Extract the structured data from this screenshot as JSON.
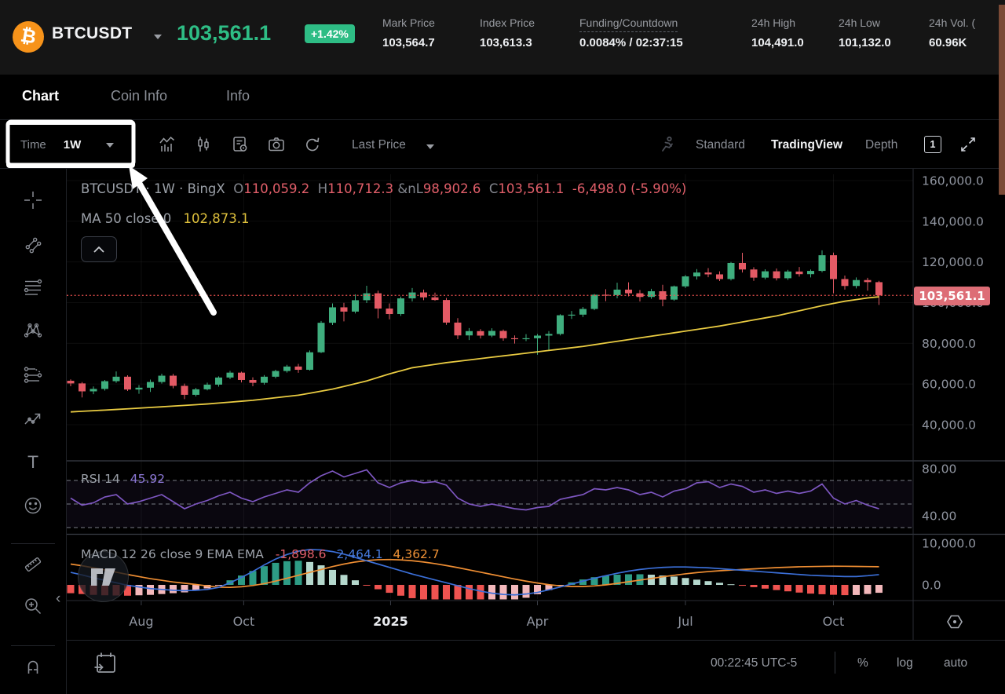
{
  "header": {
    "symbol": "BTCUSDT",
    "price": "103,561.1",
    "change": "+1.42%",
    "stats": [
      {
        "label": "Mark Price",
        "value": "103,564.7"
      },
      {
        "label": "Index Price",
        "value": "103,613.3"
      },
      {
        "label": "Funding/Countdown",
        "value": "0.0084% / 02:37:15"
      },
      {
        "label": "24h High",
        "value": "104,491.0"
      },
      {
        "label": "24h Low",
        "value": "101,132.0"
      },
      {
        "label": "24h Vol. (",
        "value": "60.96K"
      }
    ]
  },
  "tabs": {
    "chart": "Chart",
    "coin_info": "Coin Info",
    "info": "Info"
  },
  "toolbar": {
    "time_label": "Time",
    "interval": "1W",
    "last_price": "Last Price",
    "standard": "Standard",
    "tradingview": "TradingView",
    "depth": "Depth",
    "box_number": "1"
  },
  "legend": {
    "title": "BTCUSDT · 1W · BingX",
    "o_label": "O",
    "o": "110,059.2",
    "h_label": "H",
    "h": "110,712.3",
    "l_label": "L",
    "l": "98,902.6",
    "c_label": "C",
    "c": "103,561.1",
    "change": "-6,498.0 (-5.90%)",
    "ma_label": "MA 50 close 0",
    "ma_value": "102,873.1"
  },
  "rsi_legend": {
    "label": "RSI 14",
    "value": "45.92"
  },
  "macd_legend": {
    "label": "MACD 12 26 close 9 EMA EMA",
    "hist": "-1,898.6",
    "macd": "2,464.1",
    "signal": "4,362.7"
  },
  "price_chip": "103,561.1",
  "footer": {
    "clock": "00:22:45 UTC-5",
    "percent": "%",
    "log": "log",
    "auto": "auto"
  },
  "chart_data": {
    "type": "candlestick",
    "symbol": "BTCUSDT",
    "interval": "1W",
    "exchange": "BingX",
    "current_price": 103561.1,
    "price_axis": {
      "min": 40000,
      "max": 160000,
      "ticks": [
        {
          "label": "160,000.0",
          "value": 160000
        },
        {
          "label": "140,000.0",
          "value": 140000
        },
        {
          "label": "120,000.0",
          "value": 120000
        },
        {
          "label": "100,000.0",
          "value": 100000
        },
        {
          "label": "80,000.0",
          "value": 80000
        },
        {
          "label": "60,000.0",
          "value": 60000
        },
        {
          "label": "40,000.0",
          "value": 40000
        }
      ]
    },
    "rsi_axis": {
      "ticks": [
        {
          "label": "80.00",
          "value": 80
        },
        {
          "label": "40.00",
          "value": 40
        }
      ],
      "levels": [
        70,
        50,
        30
      ]
    },
    "macd_axis": {
      "ticks": [
        {
          "label": "10,000.0",
          "value": 10000
        },
        {
          "label": "0.0",
          "value": 0
        }
      ]
    },
    "time_ticks": [
      {
        "label": "Aug",
        "i": 6.2,
        "bold": false
      },
      {
        "label": "Oct",
        "i": 15.2,
        "bold": false
      },
      {
        "label": "2025",
        "i": 28.1,
        "bold": true
      },
      {
        "label": "Apr",
        "i": 41.0,
        "bold": false
      },
      {
        "label": "Jul",
        "i": 54.0,
        "bold": false
      },
      {
        "label": "Oct",
        "i": 67.0,
        "bold": false
      }
    ],
    "colors": {
      "up": "#3fae7e",
      "down": "#e35a65",
      "ma": "#e9cb42",
      "price_line": "#ef5350",
      "rsi": "#7e57c2",
      "macd_line": "#3b6fd8",
      "signal_line": "#ef8e33",
      "hist_pos": "#2e9c85",
      "hist_pos_light": "#b5d8cd",
      "hist_neg": "#ef5350",
      "hist_neg_light": "#f3b8bb"
    },
    "candles": [
      [
        61600,
        62300,
        58900,
        60300
      ],
      [
        60300,
        61000,
        53400,
        56400
      ],
      [
        56400,
        58800,
        55000,
        57600
      ],
      [
        57600,
        62000,
        56800,
        61400
      ],
      [
        61400,
        66200,
        60600,
        63600
      ],
      [
        63600,
        64300,
        56600,
        57300
      ],
      [
        57300,
        59500,
        55200,
        58200
      ],
      [
        58200,
        62200,
        56100,
        61000
      ],
      [
        61000,
        65100,
        60200,
        64100
      ],
      [
        64100,
        65000,
        57900,
        59100
      ],
      [
        59100,
        60200,
        52600,
        54700
      ],
      [
        54700,
        58100,
        53900,
        57400
      ],
      [
        57400,
        60700,
        56900,
        59700
      ],
      [
        59700,
        63800,
        58700,
        63200
      ],
      [
        63200,
        66500,
        62400,
        65600
      ],
      [
        65600,
        66100,
        60800,
        62000
      ],
      [
        62000,
        63300,
        58900,
        60600
      ],
      [
        60600,
        64400,
        59700,
        63600
      ],
      [
        63600,
        67000,
        62800,
        66400
      ],
      [
        66400,
        69400,
        65600,
        68600
      ],
      [
        68600,
        69900,
        65500,
        67000
      ],
      [
        67000,
        76500,
        66600,
        75600
      ],
      [
        75600,
        91000,
        75200,
        90100
      ],
      [
        90100,
        99600,
        89000,
        97700
      ],
      [
        97700,
        99900,
        90800,
        95600
      ],
      [
        95600,
        104100,
        94700,
        101200
      ],
      [
        101200,
        108300,
        99800,
        104600
      ],
      [
        104600,
        105900,
        92300,
        97100
      ],
      [
        97100,
        99600,
        91800,
        94400
      ],
      [
        94400,
        103000,
        93500,
        102100
      ],
      [
        102100,
        107200,
        100600,
        105000
      ],
      [
        105000,
        106400,
        101200,
        102600
      ],
      [
        102600,
        104900,
        100900,
        101300
      ],
      [
        101300,
        102300,
        89100,
        90200
      ],
      [
        90200,
        92400,
        82100,
        83900
      ],
      [
        83900,
        87500,
        81600,
        86000
      ],
      [
        86000,
        87000,
        82400,
        83800
      ],
      [
        83800,
        87400,
        83000,
        86100
      ],
      [
        86100,
        86800,
        81300,
        82500
      ],
      [
        82500,
        83900,
        79900,
        82300
      ],
      [
        82300,
        84500,
        81100,
        82500
      ],
      [
        82500,
        84600,
        74400,
        83800
      ],
      [
        83800,
        86000,
        76200,
        84600
      ],
      [
        84600,
        94300,
        83900,
        93800
      ],
      [
        93800,
        95900,
        92000,
        94100
      ],
      [
        94100,
        97900,
        92900,
        96900
      ],
      [
        96900,
        104300,
        96300,
        103900
      ],
      [
        103900,
        106600,
        100700,
        103700
      ],
      [
        103700,
        109800,
        102100,
        106400
      ],
      [
        106400,
        110000,
        103100,
        104600
      ],
      [
        104600,
        106200,
        100600,
        102800
      ],
      [
        102800,
        106800,
        101900,
        105600
      ],
      [
        105600,
        108800,
        98200,
        101500
      ],
      [
        101500,
        108400,
        100900,
        108000
      ],
      [
        108000,
        113600,
        107200,
        112900
      ],
      [
        112900,
        116500,
        111400,
        114800
      ],
      [
        114800,
        117000,
        112500,
        113900
      ],
      [
        113900,
        115400,
        110600,
        111600
      ],
      [
        111600,
        120000,
        110900,
        119500
      ],
      [
        119500,
        124500,
        114800,
        116300
      ],
      [
        116300,
        117400,
        110700,
        112300
      ],
      [
        112300,
        116400,
        111500,
        115400
      ],
      [
        115400,
        116800,
        110900,
        112000
      ],
      [
        112000,
        116100,
        111200,
        115300
      ],
      [
        115300,
        117500,
        112800,
        114000
      ],
      [
        114000,
        116300,
        112400,
        115600
      ],
      [
        115600,
        125700,
        114900,
        123300
      ],
      [
        123300,
        124600,
        104600,
        111600
      ],
      [
        111600,
        113300,
        106400,
        108200
      ],
      [
        108200,
        112400,
        107000,
        111100
      ],
      [
        111100,
        112200,
        105900,
        110100
      ],
      [
        110059.2,
        110712.3,
        98902.6,
        103561.1
      ]
    ],
    "ma50": [
      46300,
      46600,
      46900,
      47200,
      47500,
      47825,
      48150,
      48475,
      48800,
      49150,
      49500,
      49850,
      50200,
      50650,
      51100,
      51550,
      52000,
      52625,
      53250,
      53875,
      54500,
      55500,
      56500,
      57500,
      58833,
      60167,
      61500,
      63250,
      65000,
      66500,
      68000,
      68833,
      69667,
      70500,
      71167,
      71833,
      72500,
      73167,
      73833,
      74500,
      75167,
      75833,
      76500,
      77167,
      77833,
      78500,
      79333,
      80167,
      81000,
      81833,
      82667,
      83500,
      84333,
      85167,
      86000,
      86833,
      87667,
      88500,
      89500,
      90500,
      91500,
      92500,
      93500,
      94750,
      96000,
      97250,
      98500,
      99600,
      100700,
      101500,
      102300,
      102873
    ],
    "rsi": [
      55,
      49,
      51,
      56,
      58,
      50,
      52,
      55,
      58,
      52,
      46,
      50,
      53,
      57,
      60,
      55,
      52,
      56,
      59,
      62,
      60,
      68,
      74,
      78,
      73,
      76,
      79,
      68,
      64,
      68,
      70,
      68,
      69,
      66,
      55,
      50,
      48,
      50,
      48,
      46,
      45,
      47,
      48,
      54,
      56,
      58,
      63,
      62,
      64,
      62,
      58,
      60,
      56,
      61,
      63,
      68,
      69,
      64,
      67,
      65,
      60,
      62,
      59,
      61,
      59,
      61,
      67,
      55,
      50,
      53,
      49,
      45.92
    ],
    "rsi_current": 45.92,
    "macd": {
      "macd_line": [
        3000,
        2400,
        1700,
        1100,
        500,
        -100,
        -500,
        -900,
        -1100,
        -1300,
        -1400,
        -1300,
        -1100,
        -600,
        500,
        1800,
        3200,
        4800,
        6200,
        7300,
        8100,
        8500,
        8400,
        8000,
        7400,
        6600,
        5800,
        5000,
        4200,
        3400,
        2600,
        1900,
        1200,
        500,
        -200,
        -900,
        -1500,
        -2000,
        -2300,
        -2400,
        -2200,
        -1800,
        -1200,
        -500,
        200,
        900,
        1600,
        2200,
        2800,
        3300,
        3700,
        4000,
        4200,
        4300,
        4300,
        4200,
        4100,
        3900,
        3700,
        3500,
        3300,
        3100,
        2900,
        2700,
        2500,
        2300,
        2200,
        2100,
        2000,
        2000,
        2200,
        2464.1
      ],
      "signal_line": [
        5000,
        4600,
        4100,
        3600,
        3050,
        2500,
        2000,
        1500,
        1100,
        700,
        400,
        100,
        -250,
        -550,
        -600,
        -450,
        -150,
        300,
        900,
        1600,
        2300,
        3000,
        3700,
        4400,
        5000,
        5500,
        5850,
        6050,
        6100,
        6000,
        5800,
        5500,
        5100,
        4650,
        4150,
        3600,
        3050,
        2500,
        1950,
        1400,
        900,
        450,
        50,
        -250,
        -400,
        -400,
        -250,
        0,
        350,
        750,
        1150,
        1550,
        1950,
        2300,
        2650,
        2950,
        3200,
        3400,
        3550,
        3700,
        3850,
        4000,
        4150,
        4250,
        4350,
        4400,
        4450,
        4480,
        4470,
        4440,
        4400,
        4362.7
      ],
      "hist_current": -1898.6,
      "macd_current": 2464.1,
      "signal_current": 4362.7
    },
    "annotation": {
      "type": "highlight-box-with-arrow",
      "target": "Time 1W interval selector"
    }
  }
}
